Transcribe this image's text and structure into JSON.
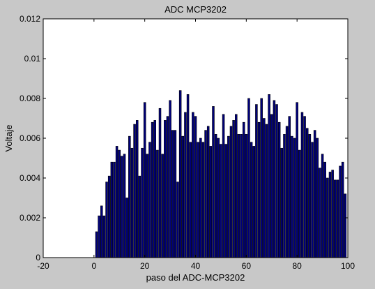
{
  "chart_data": {
    "type": "bar",
    "title": "ADC MCP3202",
    "xlabel": "paso del ADC-MCP3202",
    "ylabel": "Voltaje",
    "xlim": [
      -20,
      100
    ],
    "ylim": [
      0,
      0.012
    ],
    "xticks": [
      "-20",
      "0",
      "20",
      "40",
      "60",
      "80",
      "100"
    ],
    "yticks": [
      "0",
      "0.002",
      "0.004",
      "0.006",
      "0.008",
      "0.01",
      "0.012"
    ],
    "grid": false,
    "bar_color": "#00007a",
    "x": [
      0,
      1,
      2,
      3,
      4,
      5,
      6,
      7,
      8,
      9,
      10,
      11,
      12,
      13,
      14,
      15,
      16,
      17,
      18,
      19,
      20,
      21,
      22,
      23,
      24,
      25,
      26,
      27,
      28,
      29,
      30,
      31,
      32,
      33,
      34,
      35,
      36,
      37,
      38,
      39,
      40,
      41,
      42,
      43,
      44,
      45,
      46,
      47,
      48,
      49,
      50,
      51,
      52,
      53,
      54,
      55,
      56,
      57,
      58,
      59,
      60,
      61,
      62,
      63,
      64,
      65,
      66,
      67,
      68,
      69,
      70,
      71,
      72,
      73,
      74,
      75,
      76,
      77,
      78,
      79,
      80,
      81,
      82,
      83,
      84,
      85,
      86,
      87,
      88,
      89,
      90,
      91,
      92,
      93,
      94,
      95,
      96,
      97,
      98,
      99
    ],
    "values": [
      0,
      0.0013,
      0.0021,
      0.0026,
      0.0021,
      0.0038,
      0.0041,
      0.0048,
      0.0048,
      0.0056,
      0.0054,
      0.0051,
      0.0052,
      0.003,
      0.0061,
      0.0055,
      0.0067,
      0.0069,
      0.0041,
      0.0055,
      0.0078,
      0.0052,
      0.0058,
      0.0068,
      0.0069,
      0.0054,
      0.0075,
      0.0052,
      0.0069,
      0.0071,
      0.0079,
      0.0064,
      0.0064,
      0.0038,
      0.0084,
      0.0061,
      0.0073,
      0.0082,
      0.0058,
      0.0073,
      0.0071,
      0.0058,
      0.006,
      0.0058,
      0.0064,
      0.0066,
      0.0056,
      0.0076,
      0.0062,
      0.006,
      0.0057,
      0.0072,
      0.0057,
      0.0061,
      0.0066,
      0.0069,
      0.0072,
      0.0062,
      0.0062,
      0.0068,
      0.0062,
      0.008,
      0.0058,
      0.0056,
      0.0077,
      0.0068,
      0.008,
      0.007,
      0.0067,
      0.0082,
      0.0072,
      0.0079,
      0.0077,
      0.0068,
      0.0055,
      0.0062,
      0.0066,
      0.0071,
      0.0061,
      0.006,
      0.0078,
      0.0054,
      0.0073,
      0.0071,
      0.0065,
      0.0062,
      0.0058,
      0.0064,
      0.006,
      0.0045,
      0.0052,
      0.0048,
      0.004,
      0.0043,
      0.0044,
      0.0039,
      0.0039,
      0.0046,
      0.0048,
      0.0032
    ]
  }
}
